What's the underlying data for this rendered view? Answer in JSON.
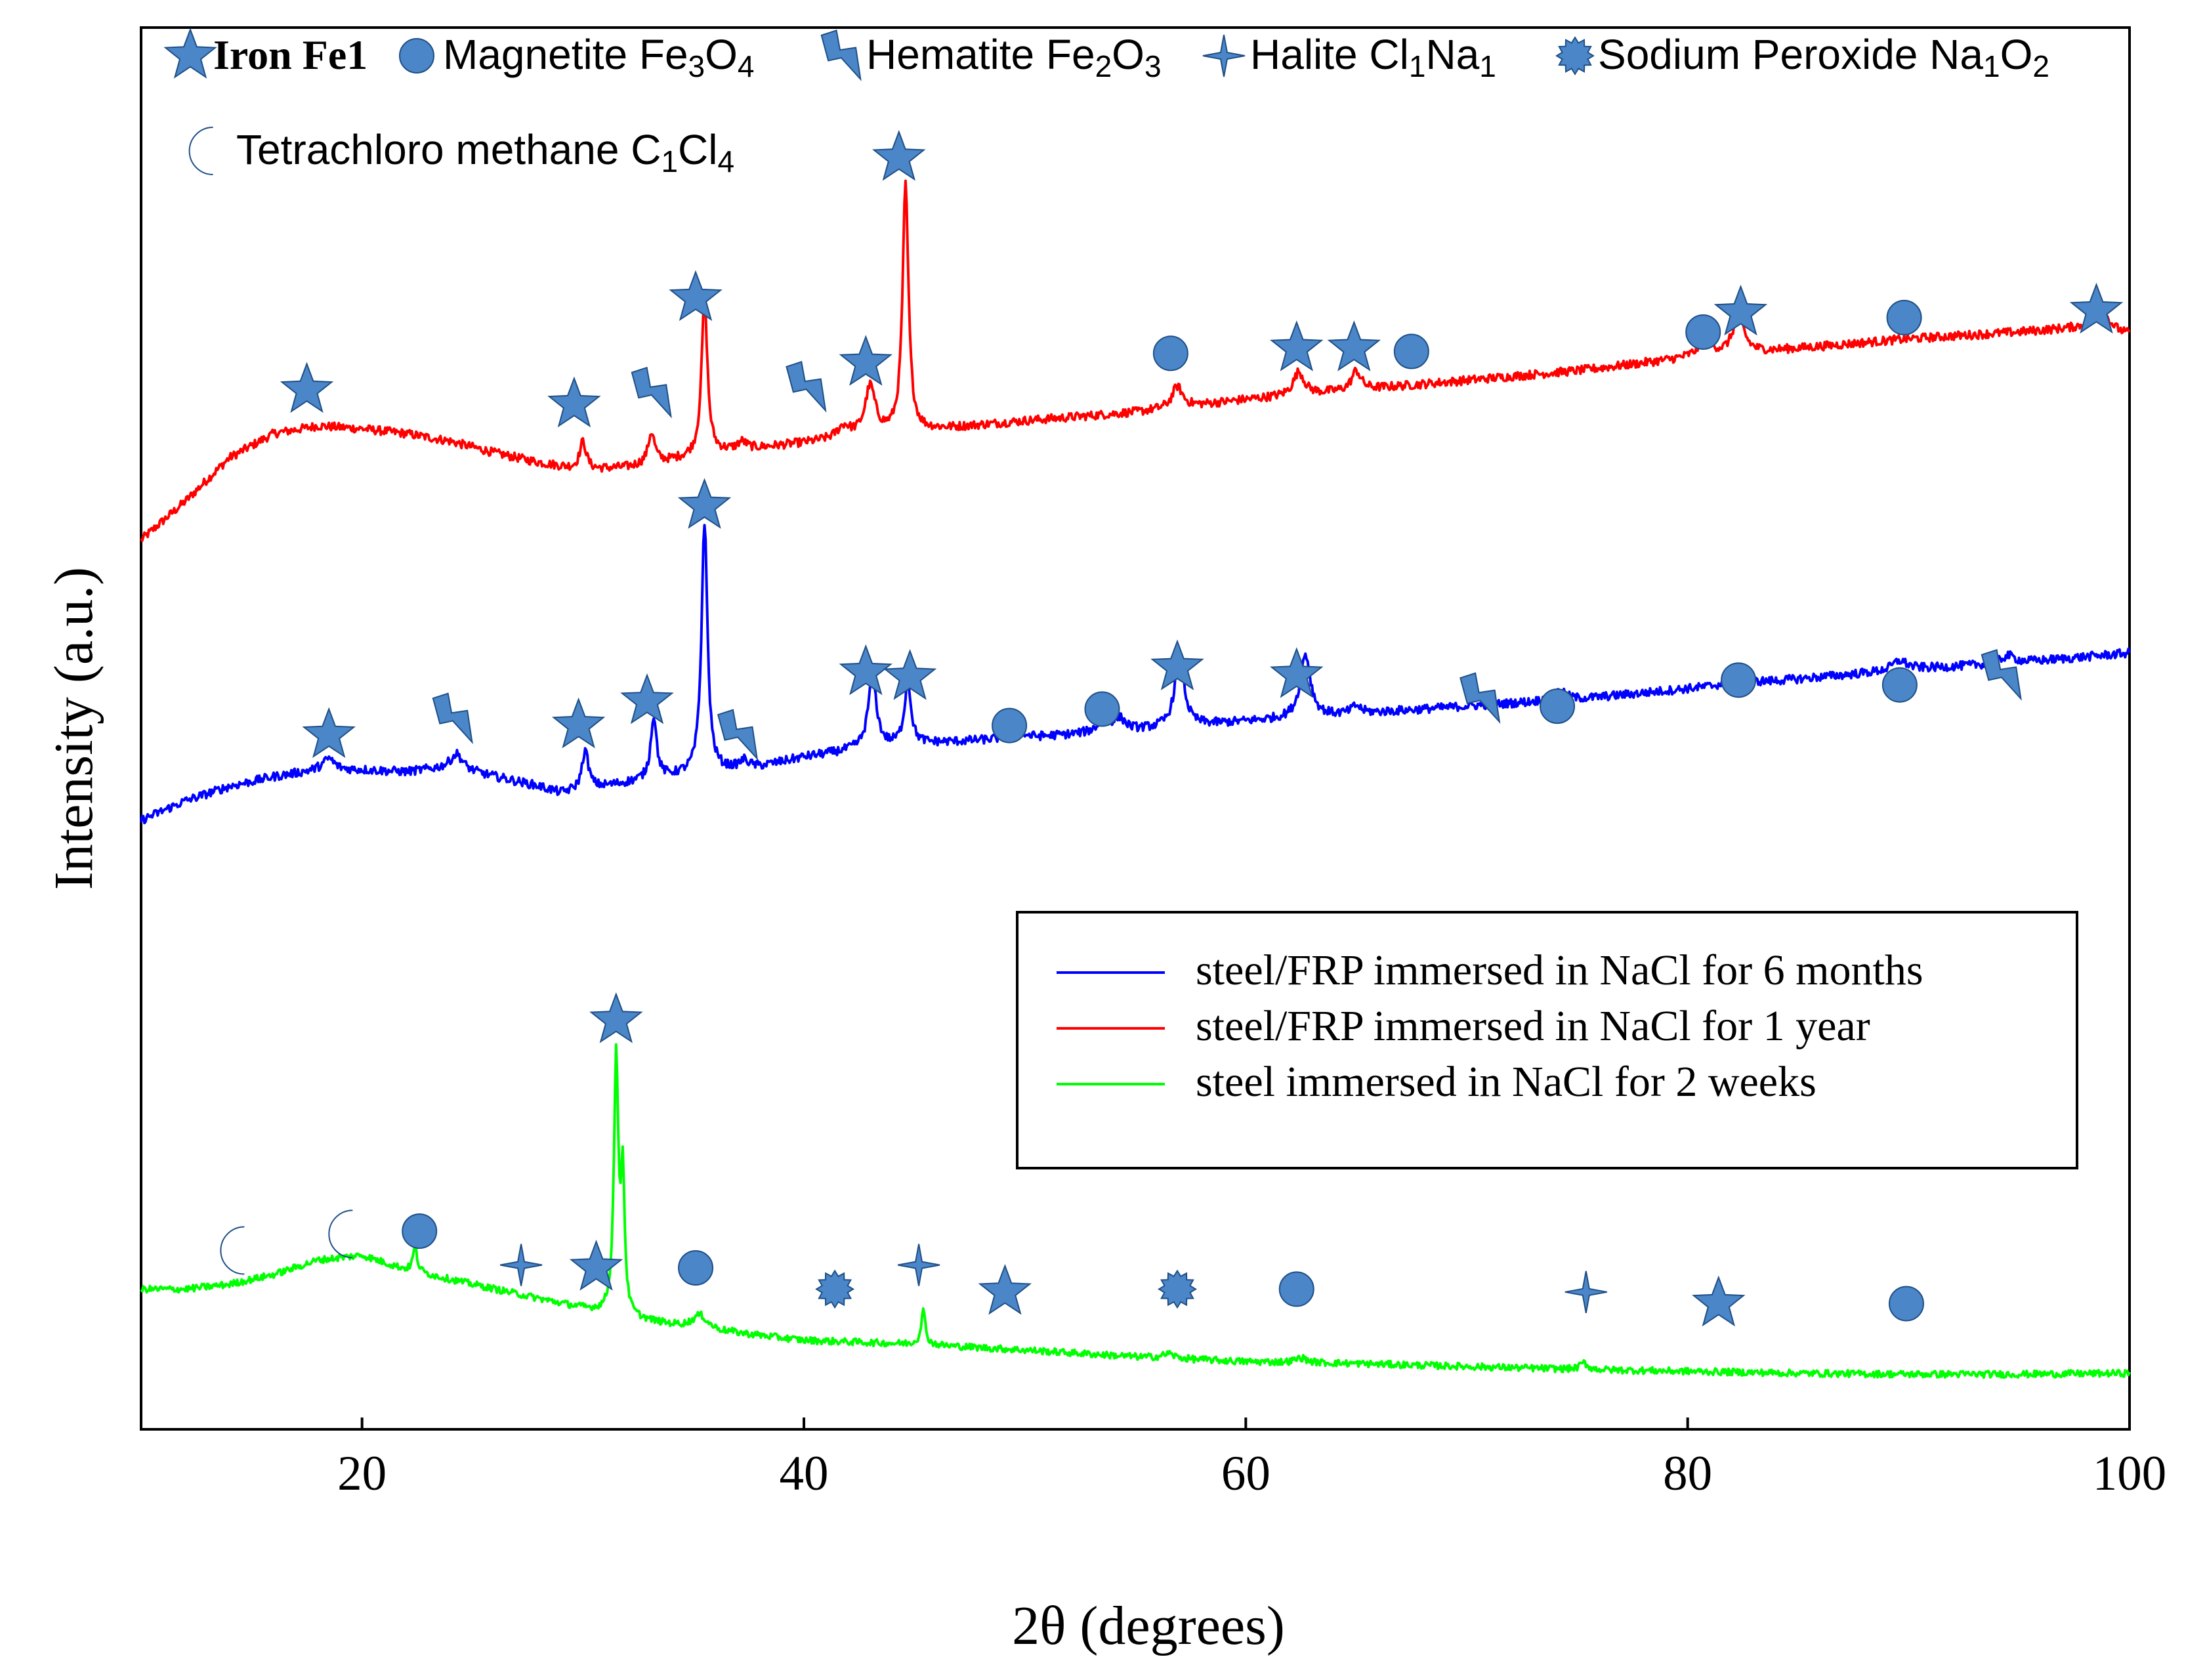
{
  "chart_data": {
    "type": "line",
    "title": "",
    "xlabel": "2θ (degrees)",
    "ylabel": "Intensity (a.u.)",
    "xlim": [
      10,
      100
    ],
    "xticks": [
      20,
      40,
      60,
      80,
      100
    ],
    "grid": false,
    "yticks_shown": false,
    "legend_placement": "center-right",
    "phase_legend": [
      {
        "symbol": "star",
        "text": "Iron Fe1",
        "style": "serif"
      },
      {
        "symbol": "circle",
        "text": "Magnetite Fe3O4",
        "style": "sans"
      },
      {
        "symbol": "bolt",
        "text": "Hematite Fe2O3",
        "style": "sans"
      },
      {
        "symbol": "sparkle",
        "text": "Halite Cl1Na1",
        "style": "sans"
      },
      {
        "symbol": "burst",
        "text": "Sodium Peroxide Na1O2",
        "style": "sans"
      },
      {
        "symbol": "moon",
        "text": "Tetrachloro methane C1Cl4",
        "style": "sans"
      }
    ],
    "series": [
      {
        "name": "steel/FRP immersed in NaCl for 1 year",
        "color": "#ff0000",
        "baseline": [
          [
            10,
            22.0
          ],
          [
            12,
            26.0
          ],
          [
            14,
            30.5
          ],
          [
            16,
            33.0
          ],
          [
            18,
            33.8
          ],
          [
            20,
            33.5
          ],
          [
            22,
            33.0
          ],
          [
            24,
            32.2
          ],
          [
            26,
            31.0
          ],
          [
            28,
            30.0
          ],
          [
            30,
            29.2
          ],
          [
            32,
            29.5
          ],
          [
            34,
            30.2
          ],
          [
            36,
            31.0
          ],
          [
            40,
            32.0
          ],
          [
            44,
            33.0
          ],
          [
            50,
            34.3
          ],
          [
            55,
            35.2
          ],
          [
            60,
            36.5
          ],
          [
            65,
            37.5
          ],
          [
            70,
            38.5
          ],
          [
            75,
            39.5
          ],
          [
            80,
            40.8
          ],
          [
            85,
            41.8
          ],
          [
            90,
            42.8
          ],
          [
            95,
            43.5
          ],
          [
            98,
            44.0
          ],
          [
            100,
            43.2
          ]
        ],
        "peaks": [
          {
            "x": 30.0,
            "h": 3.0,
            "w": 0.18
          },
          {
            "x": 33.1,
            "h": 3.2,
            "w": 0.18
          },
          {
            "x": 35.5,
            "h": 16.0,
            "w": 0.16
          },
          {
            "x": 37.2,
            "h": 0.8,
            "w": 0.25
          },
          {
            "x": 41.8,
            "h": 1.2,
            "w": 0.35
          },
          {
            "x": 43.0,
            "h": 5.0,
            "w": 0.28
          },
          {
            "x": 44.6,
            "h": 25.5,
            "w": 0.16
          },
          {
            "x": 56.9,
            "h": 2.2,
            "w": 0.28
          },
          {
            "x": 62.4,
            "h": 2.4,
            "w": 0.3
          },
          {
            "x": 65.0,
            "h": 2.0,
            "w": 0.25
          },
          {
            "x": 80.8,
            "h": 1.5,
            "w": 0.4
          },
          {
            "x": 82.3,
            "h": 4.0,
            "w": 0.3
          },
          {
            "x": 98.8,
            "h": 1.8,
            "w": 0.4
          }
        ],
        "noise": 0.45
      },
      {
        "name": "steel/FRP immersed in NaCl for 6 months",
        "color": "#0000ff",
        "baseline": [
          [
            10,
            -7.0
          ],
          [
            12,
            -5.0
          ],
          [
            14,
            -3.5
          ],
          [
            16,
            -2.5
          ],
          [
            18,
            -1.8
          ],
          [
            20,
            -1.8
          ],
          [
            22,
            -2.0
          ],
          [
            24,
            -1.5
          ],
          [
            26,
            -2.5
          ],
          [
            28,
            -3.5
          ],
          [
            29,
            -4.2
          ],
          [
            31,
            -3.5
          ],
          [
            34,
            -2.5
          ],
          [
            38,
            -1.5
          ],
          [
            40,
            -0.5
          ],
          [
            43,
            0.5
          ],
          [
            46,
            1.0
          ],
          [
            50,
            1.5
          ],
          [
            55,
            2.3
          ],
          [
            60,
            3.2
          ],
          [
            65,
            4.0
          ],
          [
            70,
            4.8
          ],
          [
            75,
            5.5
          ],
          [
            80,
            6.6
          ],
          [
            85,
            7.6
          ],
          [
            90,
            8.6
          ],
          [
            95,
            9.3
          ],
          [
            100,
            10.3
          ]
        ],
        "peaks": [
          {
            "x": 18.5,
            "h": 1.2,
            "w": 0.3
          },
          {
            "x": 24.3,
            "h": 1.5,
            "w": 0.3
          },
          {
            "x": 30.1,
            "h": 4.0,
            "w": 0.18
          },
          {
            "x": 33.2,
            "h": 6.5,
            "w": 0.16
          },
          {
            "x": 35.5,
            "h": 26.0,
            "w": 0.16
          },
          {
            "x": 37.3,
            "h": 0.8,
            "w": 0.25
          },
          {
            "x": 43.1,
            "h": 7.5,
            "w": 0.22
          },
          {
            "x": 44.7,
            "h": 6.5,
            "w": 0.18
          },
          {
            "x": 49.6,
            "h": 0.8,
            "w": 0.35
          },
          {
            "x": 53.6,
            "h": 1.2,
            "w": 0.35
          },
          {
            "x": 54.3,
            "h": 1.2,
            "w": 0.3
          },
          {
            "x": 57.0,
            "h": 7.5,
            "w": 0.25
          },
          {
            "x": 62.7,
            "h": 6.5,
            "w": 0.28
          },
          {
            "x": 65.0,
            "h": 0.8,
            "w": 0.25
          },
          {
            "x": 74.2,
            "h": 0.9,
            "w": 0.4
          },
          {
            "x": 82.3,
            "h": 1.6,
            "w": 0.3
          },
          {
            "x": 89.6,
            "h": 1.0,
            "w": 0.4
          },
          {
            "x": 94.5,
            "h": 0.8,
            "w": 0.4
          }
        ],
        "noise": 0.45
      },
      {
        "name": "steel immersed in NaCl for 2 weeks",
        "color": "#00ff00",
        "baseline": [
          [
            10,
            -55.5
          ],
          [
            12,
            -55.5
          ],
          [
            14,
            -55.0
          ],
          [
            16,
            -54.0
          ],
          [
            18,
            -52.5
          ],
          [
            20,
            -52.0
          ],
          [
            22,
            -53.5
          ],
          [
            24,
            -54.5
          ],
          [
            26,
            -55.5
          ],
          [
            28,
            -56.5
          ],
          [
            30,
            -57.5
          ],
          [
            32,
            -58.5
          ],
          [
            34,
            -59.2
          ],
          [
            36,
            -59.8
          ],
          [
            38,
            -60.3
          ],
          [
            40,
            -60.8
          ],
          [
            45,
            -61.2
          ],
          [
            50,
            -61.8
          ],
          [
            55,
            -62.5
          ],
          [
            60,
            -63.0
          ],
          [
            65,
            -63.2
          ],
          [
            70,
            -63.5
          ],
          [
            75,
            -63.8
          ],
          [
            80,
            -64.0
          ],
          [
            85,
            -64.2
          ],
          [
            90,
            -64.3
          ],
          [
            95,
            -64.3
          ],
          [
            100,
            -64.2
          ]
        ],
        "peaks": [
          {
            "x": 22.4,
            "h": 2.5,
            "w": 0.12
          },
          {
            "x": 31.5,
            "h": 26.5,
            "w": 0.12
          },
          {
            "x": 31.8,
            "h": 14.0,
            "w": 0.1
          },
          {
            "x": 35.3,
            "h": 1.4,
            "w": 0.4
          },
          {
            "x": 45.4,
            "h": 3.5,
            "w": 0.12
          },
          {
            "x": 56.5,
            "h": 0.5,
            "w": 0.3
          },
          {
            "x": 62.5,
            "h": 0.5,
            "w": 0.3
          },
          {
            "x": 75.3,
            "h": 0.7,
            "w": 0.2
          }
        ],
        "noise": 0.35
      }
    ],
    "markers": [
      {
        "series": "steel/FRP immersed in NaCl for 1 year",
        "items": [
          {
            "x": 17.5,
            "y": 37.5,
            "symbol": "star"
          },
          {
            "x": 29.6,
            "y": 36.0,
            "symbol": "star"
          },
          {
            "x": 33.2,
            "y": 37.2,
            "symbol": "bolt"
          },
          {
            "x": 35.1,
            "y": 47.0,
            "symbol": "star"
          },
          {
            "x": 40.2,
            "y": 37.8,
            "symbol": "bolt"
          },
          {
            "x": 42.8,
            "y": 40.3,
            "symbol": "star"
          },
          {
            "x": 44.3,
            "y": 61.5,
            "symbol": "star"
          },
          {
            "x": 56.6,
            "y": 41.3,
            "symbol": "circle"
          },
          {
            "x": 62.3,
            "y": 41.8,
            "symbol": "star"
          },
          {
            "x": 64.9,
            "y": 41.8,
            "symbol": "star"
          },
          {
            "x": 67.5,
            "y": 41.5,
            "symbol": "circle"
          },
          {
            "x": 80.7,
            "y": 43.5,
            "symbol": "circle"
          },
          {
            "x": 82.4,
            "y": 45.5,
            "symbol": "star"
          },
          {
            "x": 89.8,
            "y": 45.0,
            "symbol": "circle"
          },
          {
            "x": 98.5,
            "y": 45.7,
            "symbol": "star"
          }
        ]
      },
      {
        "series": "steel/FRP immersed in NaCl for 6 months",
        "items": [
          {
            "x": 18.5,
            "y": 1.8,
            "symbol": "star"
          },
          {
            "x": 24.2,
            "y": 3.5,
            "symbol": "bolt"
          },
          {
            "x": 29.8,
            "y": 2.8,
            "symbol": "star"
          },
          {
            "x": 32.9,
            "y": 5.3,
            "symbol": "star"
          },
          {
            "x": 35.5,
            "y": 25.5,
            "symbol": "star"
          },
          {
            "x": 37.1,
            "y": 1.8,
            "symbol": "bolt"
          },
          {
            "x": 42.8,
            "y": 8.3,
            "symbol": "star"
          },
          {
            "x": 44.8,
            "y": 7.8,
            "symbol": "star"
          },
          {
            "x": 49.3,
            "y": 2.8,
            "symbol": "circle"
          },
          {
            "x": 53.5,
            "y": 4.5,
            "symbol": "circle"
          },
          {
            "x": 56.9,
            "y": 8.8,
            "symbol": "star"
          },
          {
            "x": 62.3,
            "y": 8.0,
            "symbol": "star"
          },
          {
            "x": 70.7,
            "y": 5.6,
            "symbol": "bolt"
          },
          {
            "x": 74.1,
            "y": 4.8,
            "symbol": "circle"
          },
          {
            "x": 82.3,
            "y": 7.5,
            "symbol": "circle"
          },
          {
            "x": 89.6,
            "y": 7.0,
            "symbol": "circle"
          },
          {
            "x": 94.3,
            "y": 8.0,
            "symbol": "bolt"
          }
        ]
      },
      {
        "series": "steel immersed in NaCl for 2 weeks",
        "items": [
          {
            "x": 14.3,
            "y": -51.5,
            "symbol": "moon"
          },
          {
            "x": 19.2,
            "y": -49.8,
            "symbol": "moon"
          },
          {
            "x": 22.6,
            "y": -49.5,
            "symbol": "circle"
          },
          {
            "x": 27.2,
            "y": -53.0,
            "symbol": "sparkle"
          },
          {
            "x": 30.6,
            "y": -53.3,
            "symbol": "star"
          },
          {
            "x": 31.5,
            "y": -27.7,
            "symbol": "star"
          },
          {
            "x": 35.1,
            "y": -53.3,
            "symbol": "circle"
          },
          {
            "x": 41.4,
            "y": -55.5,
            "symbol": "burst"
          },
          {
            "x": 45.2,
            "y": -53.0,
            "symbol": "sparkle"
          },
          {
            "x": 49.1,
            "y": -55.8,
            "symbol": "star"
          },
          {
            "x": 56.9,
            "y": -55.5,
            "symbol": "burst"
          },
          {
            "x": 62.3,
            "y": -55.5,
            "symbol": "circle"
          },
          {
            "x": 75.4,
            "y": -55.8,
            "symbol": "sparkle"
          },
          {
            "x": 81.4,
            "y": -57.0,
            "symbol": "star"
          },
          {
            "x": 89.9,
            "y": -57.0,
            "symbol": "circle"
          }
        ]
      }
    ],
    "legend_order": [
      "steel/FRP immersed in NaCl for 6 months",
      "steel/FRP immersed in NaCl for 1 year",
      "steel immersed in NaCl for 2 weeks"
    ],
    "marker_color": "#4a86c8",
    "ylim": [
      -70,
      75
    ]
  }
}
